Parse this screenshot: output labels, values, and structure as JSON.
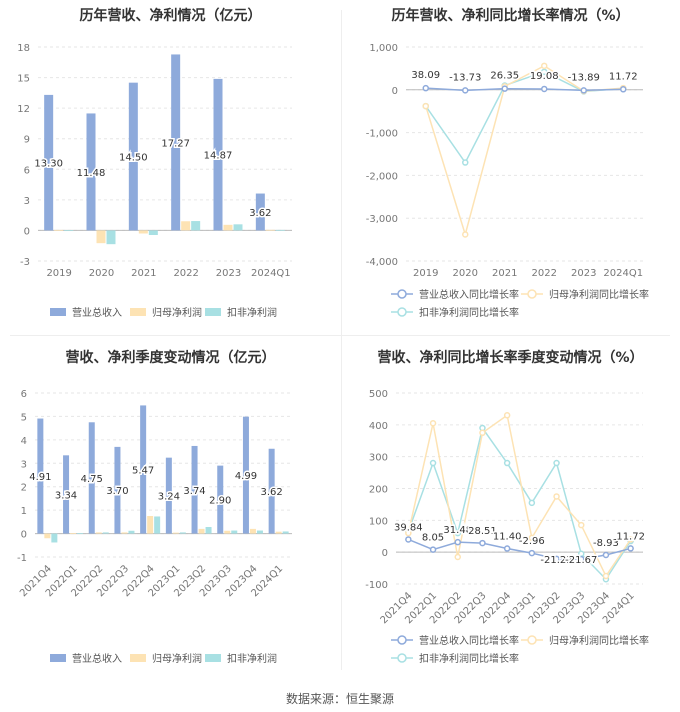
{
  "source": "数据来源：恒生聚源",
  "chart_data": [
    {
      "type": "bar",
      "title": "历年营收、净利情况（亿元）",
      "categories": [
        "2019",
        "2020",
        "2021",
        "2022",
        "2023",
        "2024Q1"
      ],
      "ylim": [
        -3,
        18
      ],
      "yticks": [
        -3,
        0,
        3,
        6,
        9,
        12,
        15,
        18
      ],
      "series": [
        {
          "name": "营业总收入",
          "color": "#8eaadb",
          "values": [
            13.3,
            11.48,
            14.5,
            17.27,
            14.87,
            3.62
          ],
          "labels": [
            "13.30",
            "11.48",
            "14.50",
            "17.27",
            "14.87",
            "3.62"
          ]
        },
        {
          "name": "归母净利润",
          "color": "#fde3b4",
          "values": [
            0.05,
            -1.25,
            -0.3,
            0.9,
            0.55,
            0.06
          ]
        },
        {
          "name": "扣非净利润",
          "color": "#a8e0e3",
          "values": [
            0.02,
            -1.35,
            -0.45,
            0.92,
            0.6,
            0.05
          ]
        }
      ]
    },
    {
      "type": "line",
      "title": "历年营收、净利同比增长率情况（%）",
      "categories": [
        "2019",
        "2020",
        "2021",
        "2022",
        "2023",
        "2024Q1"
      ],
      "ylim": [
        -4000,
        1000
      ],
      "yticks": [
        -4000,
        -3000,
        -2000,
        -1000,
        0,
        1000
      ],
      "ytick_labels": [
        "-4,000",
        "-3,000",
        "-2,000",
        "-1,000",
        "0",
        "1,000"
      ],
      "series": [
        {
          "name": "营业总收入同比增长率",
          "color": "#8eaadb",
          "values": [
            38.09,
            -13.73,
            26.35,
            19.08,
            -13.89,
            11.72
          ],
          "labels": [
            "38.09",
            "-13.73",
            "26.35",
            "19.08",
            "-13.89",
            "11.72"
          ]
        },
        {
          "name": "归母净利润同比增长率",
          "color": "#fde3b4",
          "values": [
            -380,
            -3380,
            80,
            560,
            -30,
            40
          ]
        },
        {
          "name": "扣非净利润同比增长率",
          "color": "#a8e0e3",
          "values": [
            -380,
            -1700,
            100,
            420,
            -40,
            30
          ]
        }
      ]
    },
    {
      "type": "bar",
      "title": "营收、净利季度变动情况（亿元）",
      "categories": [
        "2021Q4",
        "2022Q1",
        "2022Q2",
        "2022Q3",
        "2022Q4",
        "2023Q1",
        "2023Q2",
        "2023Q3",
        "2023Q4",
        "2024Q1"
      ],
      "ylim": [
        -1,
        6
      ],
      "yticks": [
        -1,
        0,
        1,
        2,
        3,
        4,
        5,
        6
      ],
      "series": [
        {
          "name": "营业总收入",
          "color": "#8eaadb",
          "values": [
            4.91,
            3.34,
            4.75,
            3.7,
            5.47,
            3.24,
            3.74,
            2.9,
            4.99,
            3.62
          ],
          "labels": [
            "4.91",
            "3.34",
            "4.75",
            "3.70",
            "5.47",
            "3.24",
            "3.74",
            "2.90",
            "4.99",
            "3.62"
          ]
        },
        {
          "name": "归母净利润",
          "color": "#fde3b4",
          "values": [
            -0.2,
            0.02,
            0.05,
            0.05,
            0.75,
            0.04,
            0.2,
            0.12,
            0.2,
            0.08
          ]
        },
        {
          "name": "扣非净利润",
          "color": "#a8e0e3",
          "values": [
            -0.38,
            0.02,
            0.05,
            0.12,
            0.73,
            0.05,
            0.28,
            0.13,
            0.13,
            0.09
          ]
        }
      ]
    },
    {
      "type": "line",
      "title": "营收、净利同比增长率季度变动情况（%）",
      "categories": [
        "2021Q4",
        "2022Q1",
        "2022Q2",
        "2022Q3",
        "2022Q4",
        "2023Q1",
        "2023Q2",
        "2023Q3",
        "2023Q4",
        "2024Q1"
      ],
      "ylim": [
        -100,
        500
      ],
      "yticks": [
        -100,
        0,
        100,
        200,
        300,
        400,
        500
      ],
      "ytick_labels": [
        "-100",
        "0",
        "100",
        "200",
        "300",
        "400",
        "500"
      ],
      "series": [
        {
          "name": "营业总收入同比增长率",
          "color": "#8eaadb",
          "values": [
            39.84,
            8.05,
            31.48,
            28.51,
            11.4,
            -2.96,
            -21.23,
            -21.67,
            -8.93,
            11.72
          ],
          "labels": [
            "39.84",
            "8.05",
            "31.48",
            "28.51",
            "11.40",
            "-2.96",
            "-21.23",
            "-21.67",
            "-8.93",
            "11.72"
          ]
        },
        {
          "name": "归母净利润同比增长率",
          "color": "#fde3b4",
          "values": [
            60,
            405,
            -15,
            375,
            430,
            45,
            175,
            85,
            -75,
            40
          ]
        },
        {
          "name": "扣非净利润同比增长率",
          "color": "#a8e0e3",
          "values": [
            65,
            280,
            60,
            390,
            280,
            155,
            280,
            -5,
            -85,
            35
          ]
        }
      ]
    }
  ]
}
